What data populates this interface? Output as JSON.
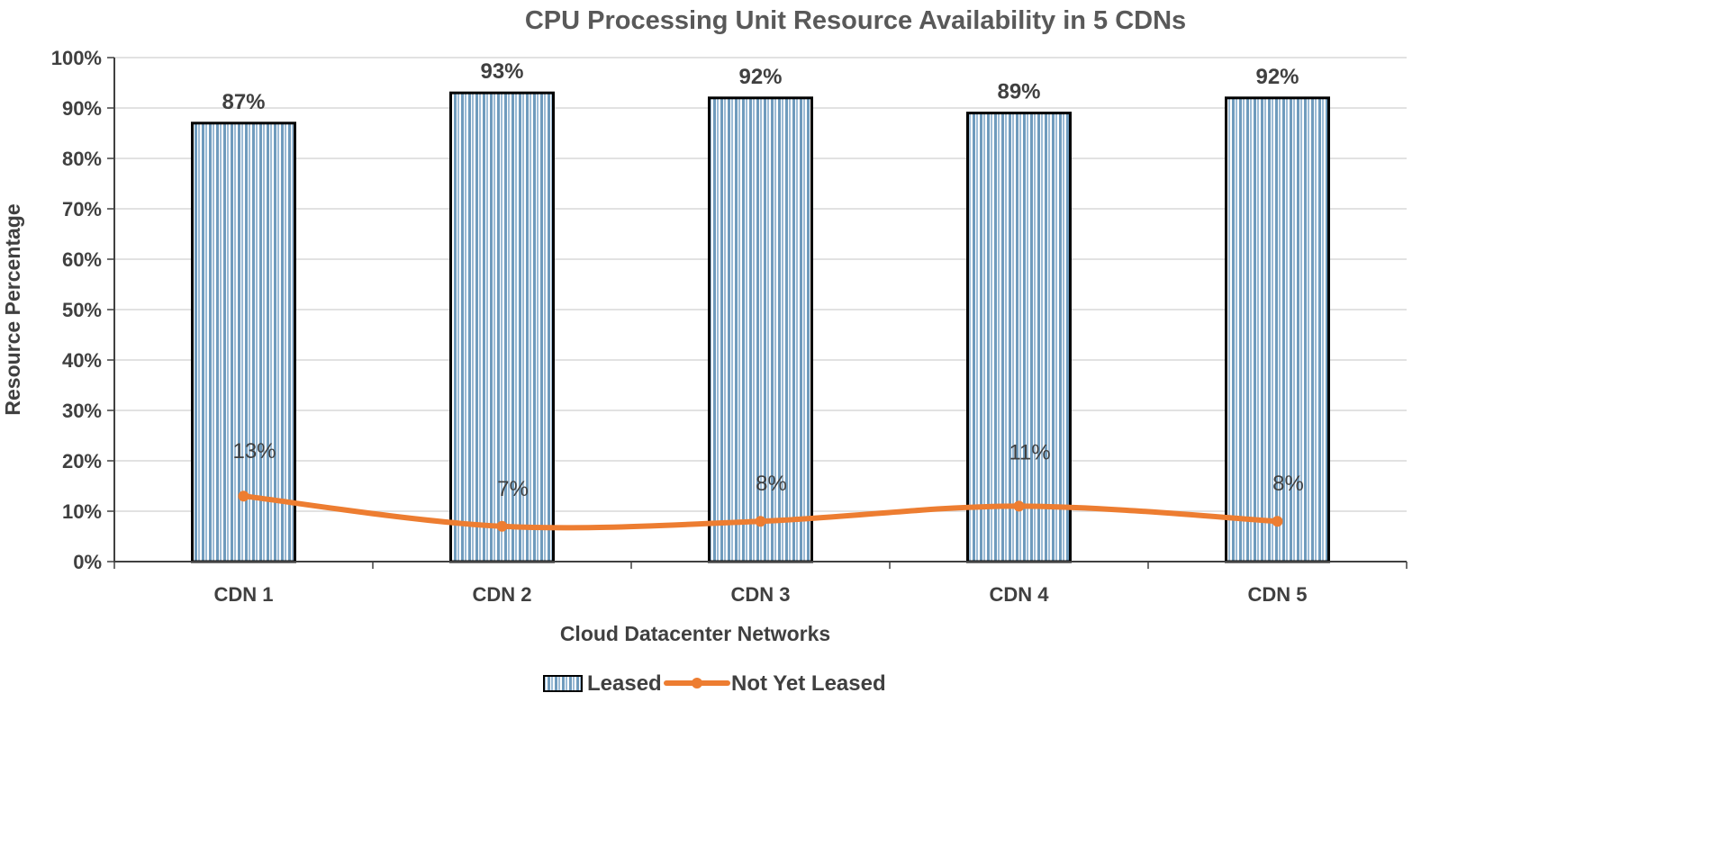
{
  "chart_data": {
    "type": "bar",
    "title": "CPU Processing Unit Resource Availability in 5 CDNs",
    "xlabel": "Cloud Datacenter Networks",
    "ylabel": "Resource Percentage",
    "categories": [
      "CDN 1",
      "CDN 2",
      "CDN 3",
      "CDN 4",
      "CDN 5"
    ],
    "ylim": [
      0,
      100
    ],
    "yticks": [
      "0%",
      "10%",
      "20%",
      "30%",
      "40%",
      "50%",
      "60%",
      "70%",
      "80%",
      "90%",
      "100%"
    ],
    "grid": true,
    "legend_position": "bottom",
    "series": [
      {
        "name": "Leased",
        "type": "bar",
        "values": [
          87,
          93,
          92,
          89,
          92
        ],
        "labels": [
          "87%",
          "93%",
          "92%",
          "89%",
          "92%"
        ],
        "color": "#6f9bbd",
        "pattern": "vertical-stripes"
      },
      {
        "name": "Not Yet Leased",
        "type": "line",
        "smooth": true,
        "values": [
          13,
          7,
          8,
          11,
          8
        ],
        "labels": [
          "13%",
          "7%",
          "8%",
          "11%",
          "8%"
        ],
        "color": "#ed7d31"
      }
    ]
  }
}
